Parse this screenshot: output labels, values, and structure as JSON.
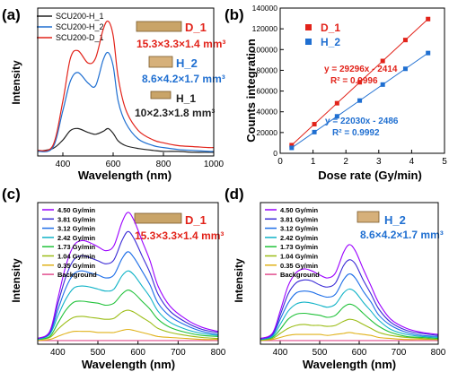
{
  "panels": [
    {
      "letter": "(a)",
      "legend": [
        "SCU200-H_1",
        "SCU200-H_2",
        "SCU200-D_1"
      ],
      "samples": [
        {
          "name": "D_1",
          "dims": "15.3×3.3×1.4 mm³"
        },
        {
          "name": "H_2",
          "dims": "8.6×4.2×1.7 mm³"
        },
        {
          "name": "H_1",
          "dims": "10×2.3×1.8 mm³"
        }
      ]
    },
    {
      "letter": "(b)",
      "legend": [
        "D_1",
        "H_2"
      ],
      "fits": [
        {
          "equation": "y = 29296x - 2414",
          "r2": "R² = 0.9996"
        },
        {
          "equation": "y = 22030x - 2486",
          "r2": "R² = 0.9992"
        }
      ]
    },
    {
      "letter": "(c)",
      "legend": [
        "4.50 Gy/min",
        "3.81 Gy/min",
        "3.12 Gy/min",
        "2.42 Gy/min",
        "1.73 Gy/min",
        "1.04 Gy/min",
        "0.35 Gy/min",
        "Background"
      ],
      "sample": {
        "name": "D_1",
        "dims": "15.3×3.3×1.4 mm³"
      }
    },
    {
      "letter": "(d)",
      "legend": [
        "4.50 Gy/min",
        "3.81 Gy/min",
        "3.12 Gy/min",
        "2.42 Gy/min",
        "1.73 Gy/min",
        "1.04 Gy/min",
        "0.35 Gy/min",
        "Background"
      ],
      "sample": {
        "name": "H_2",
        "dims": "8.6×4.2×1.7 mm³"
      }
    }
  ],
  "colors": {
    "D_1": "#e2231a",
    "H_2": "#1f6fd1",
    "H_1": "#222222",
    "rates": [
      "#9b00ff",
      "#3b2bd6",
      "#1e6ee8",
      "#11b3c7",
      "#21c23a",
      "#9bbd16",
      "#e0b21a",
      "#e24f8f"
    ]
  },
  "chart_data": [
    {
      "type": "line",
      "xlabel": "Wavelength (nm)",
      "ylabel": "Intensity",
      "xlim": [
        300,
        1000
      ],
      "xticks": [
        400,
        600,
        800,
        1000
      ],
      "yticks": [],
      "series": [
        {
          "name": "SCU200-H_1",
          "x": [
            300,
            360,
            400,
            430,
            460,
            500,
            530,
            560,
            580,
            600,
            620,
            650,
            700,
            760,
            800,
            860,
            920,
            980,
            1000
          ],
          "y": [
            2,
            5,
            14,
            24,
            26,
            22,
            20,
            23,
            26,
            21,
            13,
            8,
            5,
            3,
            2,
            2,
            1,
            1,
            1
          ]
        },
        {
          "name": "SCU200-H_2",
          "x": [
            300,
            360,
            400,
            430,
            460,
            500,
            530,
            560,
            580,
            600,
            620,
            650,
            700,
            760,
            800,
            860,
            920,
            980,
            1000
          ],
          "y": [
            2,
            6,
            45,
            76,
            85,
            74,
            71,
            98,
            106,
            92,
            55,
            32,
            15,
            8,
            6,
            4,
            3,
            2,
            2
          ]
        },
        {
          "name": "SCU200-D_1",
          "x": [
            300,
            360,
            400,
            430,
            460,
            500,
            530,
            560,
            580,
            600,
            620,
            650,
            700,
            760,
            800,
            860,
            920,
            980,
            1000
          ],
          "y": [
            3,
            8,
            55,
            100,
            108,
            95,
            100,
            130,
            139,
            124,
            80,
            46,
            24,
            14,
            11,
            8,
            7,
            6,
            6
          ]
        }
      ]
    },
    {
      "type": "scatter",
      "xlabel": "Dose rate (Gy/min)",
      "ylabel": "Counts integration",
      "xlim": [
        0,
        5
      ],
      "ylim": [
        0,
        140000
      ],
      "xticks": [
        0,
        1,
        2,
        3,
        4,
        5
      ],
      "yticks": [
        0,
        20000,
        40000,
        60000,
        80000,
        100000,
        120000,
        140000
      ],
      "series": [
        {
          "name": "D_1",
          "x": [
            0.35,
            1.04,
            1.73,
            2.42,
            3.12,
            3.81,
            4.5
          ],
          "y": [
            7840,
            28050,
            48270,
            68480,
            88990,
            109200,
            129420
          ],
          "fit": [
            29296,
            -2414
          ]
        },
        {
          "name": "H_2",
          "x": [
            0.35,
            1.04,
            1.73,
            2.42,
            3.12,
            3.81,
            4.5
          ],
          "y": [
            5230,
            20420,
            35630,
            50830,
            66250,
            81450,
            96650
          ],
          "fit": [
            22030,
            -2486
          ]
        }
      ]
    },
    {
      "type": "line",
      "xlabel": "Wavelength (nm)",
      "ylabel": "Intensity",
      "xlim": [
        350,
        800
      ],
      "xticks": [
        400,
        500,
        600,
        700,
        800
      ],
      "yticks": [],
      "x": [
        350,
        380,
        400,
        420,
        440,
        460,
        480,
        500,
        520,
        540,
        560,
        575,
        590,
        610,
        630,
        650,
        680,
        720,
        760,
        800
      ],
      "series": [
        {
          "name": "4.50 Gy/min",
          "y": [
            3,
            10,
            42,
            75,
            95,
            100,
            98,
            94,
            90,
            95,
            118,
            128,
            120,
            100,
            80,
            55,
            35,
            22,
            14,
            10
          ]
        },
        {
          "name": "3.81 Gy/min",
          "y": [
            3,
            9,
            37,
            64,
            81,
            85,
            83,
            80,
            77,
            81,
            100,
            109,
            102,
            85,
            68,
            47,
            30,
            19,
            12,
            9
          ]
        },
        {
          "name": "3.12 Gy/min",
          "y": [
            3,
            8,
            31,
            53,
            67,
            70,
            68,
            66,
            63,
            66,
            82,
            89,
            83,
            70,
            56,
            38,
            25,
            16,
            10,
            7
          ]
        },
        {
          "name": "2.42 Gy/min",
          "y": [
            2,
            7,
            25,
            42,
            53,
            55,
            54,
            52,
            50,
            52,
            65,
            70,
            66,
            55,
            44,
            30,
            19,
            12,
            8,
            6
          ]
        },
        {
          "name": "1.73 Gy/min",
          "y": [
            2,
            5,
            18,
            31,
            39,
            40,
            39,
            38,
            36,
            38,
            47,
            51,
            48,
            40,
            32,
            22,
            14,
            9,
            6,
            5
          ]
        },
        {
          "name": "1.04 Gy/min",
          "y": [
            2,
            4,
            12,
            19,
            24,
            25,
            24,
            23,
            22,
            23,
            29,
            31,
            29,
            24,
            19,
            13,
            9,
            6,
            4,
            3
          ]
        },
        {
          "name": "0.35 Gy/min",
          "y": [
            1,
            2,
            5,
            8,
            10,
            10,
            10,
            9,
            9,
            9,
            11,
            12,
            11,
            9,
            7,
            5,
            4,
            3,
            2,
            2
          ]
        },
        {
          "name": "Background",
          "y": [
            1,
            1,
            1,
            1,
            1,
            1,
            1,
            1,
            1,
            1,
            1,
            1,
            1,
            1,
            1,
            1,
            1,
            1,
            1,
            1
          ]
        }
      ]
    },
    {
      "type": "line",
      "xlabel": "Wavelength (nm)",
      "ylabel": "Intensity",
      "xlim": [
        350,
        800
      ],
      "xticks": [
        400,
        500,
        600,
        700,
        800
      ],
      "yticks": [],
      "x": [
        350,
        380,
        400,
        420,
        440,
        460,
        480,
        500,
        520,
        540,
        560,
        575,
        590,
        610,
        630,
        650,
        680,
        720,
        760,
        800
      ],
      "series": [
        {
          "name": "4.50 Gy/min",
          "y": [
            3,
            8,
            30,
            55,
            68,
            72,
            70,
            66,
            63,
            68,
            88,
            96,
            90,
            72,
            55,
            38,
            22,
            13,
            9,
            7
          ]
        },
        {
          "name": "3.81 Gy/min",
          "y": [
            3,
            7,
            26,
            47,
            58,
            61,
            60,
            56,
            54,
            58,
            75,
            81,
            77,
            61,
            47,
            32,
            19,
            11,
            8,
            6
          ]
        },
        {
          "name": "3.12 Gy/min",
          "y": [
            2,
            6,
            22,
            38,
            48,
            50,
            49,
            46,
            44,
            47,
            61,
            67,
            63,
            50,
            39,
            26,
            16,
            9,
            6,
            5
          ]
        },
        {
          "name": "2.42 Gy/min",
          "y": [
            2,
            5,
            17,
            30,
            37,
            39,
            38,
            36,
            34,
            37,
            48,
            52,
            49,
            39,
            30,
            21,
            12,
            7,
            5,
            4
          ]
        },
        {
          "name": "1.73 Gy/min",
          "y": [
            2,
            4,
            12,
            22,
            27,
            28,
            27,
            26,
            24,
            26,
            34,
            37,
            35,
            28,
            21,
            15,
            9,
            5,
            4,
            3
          ]
        },
        {
          "name": "1.04 Gy/min",
          "y": [
            1,
            3,
            8,
            13,
            16,
            17,
            16,
            16,
            15,
            16,
            20,
            22,
            21,
            17,
            13,
            9,
            6,
            4,
            3,
            2
          ]
        },
        {
          "name": "0.35 Gy/min",
          "y": [
            1,
            2,
            4,
            6,
            7,
            7,
            7,
            7,
            6,
            7,
            8,
            9,
            8,
            7,
            6,
            4,
            3,
            2,
            2,
            2
          ]
        },
        {
          "name": "Background",
          "y": [
            1,
            1,
            1,
            1,
            1,
            1,
            1,
            1,
            1,
            1,
            1,
            1,
            1,
            1,
            1,
            1,
            1,
            1,
            1,
            1
          ]
        }
      ]
    }
  ]
}
